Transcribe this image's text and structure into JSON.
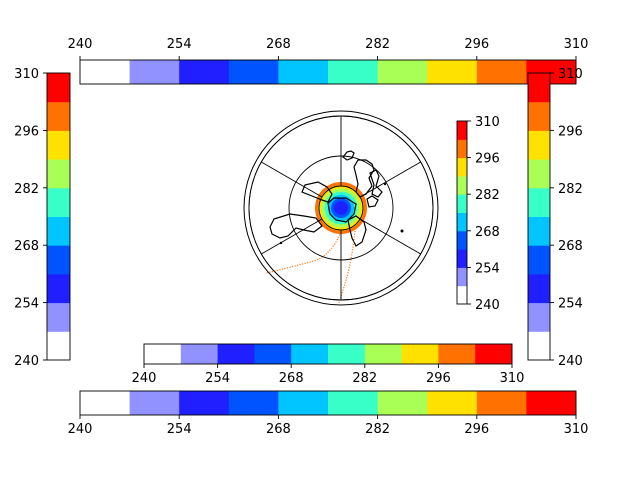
{
  "chart_data": {
    "type": "heatmap",
    "projection": "polar stereographic (south pole)",
    "levels": [
      240,
      247,
      254,
      261,
      268,
      275,
      282,
      289,
      296,
      303,
      310
    ],
    "colors": [
      "#ffffff",
      "#9191ff",
      "#1f1fff",
      "#0054ff",
      "#00c5ff",
      "#38ffc7",
      "#a9ff56",
      "#ffe100",
      "#ff7100",
      "#ff0000"
    ],
    "tick_labels": [
      "240",
      "254",
      "268",
      "282",
      "296",
      "310"
    ],
    "colorbars": [
      {
        "name": "top-horizontal",
        "orientation": "horizontal",
        "ticks_side": "top"
      },
      {
        "name": "left-vertical",
        "orientation": "vertical",
        "ticks_side": "left"
      },
      {
        "name": "right-vertical",
        "orientation": "vertical",
        "ticks_side": "right"
      },
      {
        "name": "inset-vertical",
        "orientation": "vertical",
        "ticks_side": "right"
      },
      {
        "name": "middle-horizontal",
        "orientation": "horizontal",
        "ticks_side": "bottom"
      },
      {
        "name": "bottom-horizontal",
        "orientation": "horizontal",
        "ticks_side": "bottom"
      }
    ],
    "field_rings": [
      {
        "value": 299,
        "color": "#ff7100"
      },
      {
        "value": 292,
        "color": "#ffe100"
      },
      {
        "value": 285,
        "color": "#a9ff56"
      },
      {
        "value": 278,
        "color": "#38ffc7"
      },
      {
        "value": 271,
        "color": "#00c5ff"
      },
      {
        "value": 264,
        "color": "#0054ff"
      },
      {
        "value": 257,
        "color": "#1f1fff"
      }
    ],
    "title": "",
    "xlabel": "",
    "ylabel": ""
  }
}
